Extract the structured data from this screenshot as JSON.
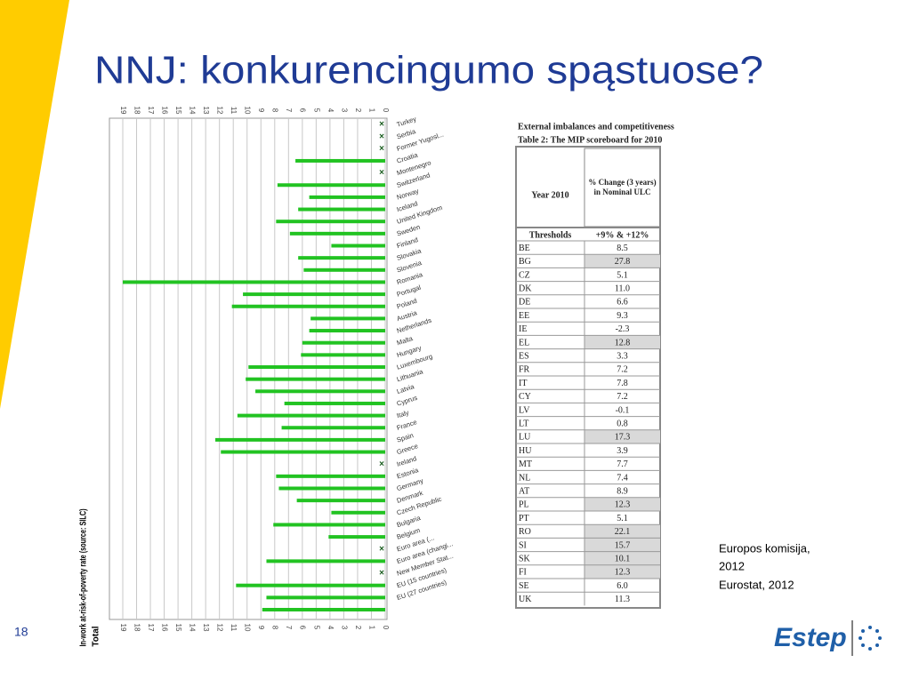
{
  "title": "NNJ: konkurencingumo spąstuose?",
  "chart_data": {
    "type": "bar",
    "orientation": "horizontal",
    "x_reversed": true,
    "axis_label": "In-work at-risk-of-poverty rate (source: SILC)",
    "axis_sublabel": "Total",
    "categories": [
      "Turkey",
      "Serbia",
      "Former Yugosl...",
      "Croatia",
      "Montenegro",
      "Switzerland",
      "Norway",
      "Iceland",
      "United Kingdom",
      "Sweden",
      "Finland",
      "Slovakia",
      "Slovenia",
      "Romania",
      "Portugal",
      "Poland",
      "Austria",
      "Netherlands",
      "Malta",
      "Hungary",
      "Luxembourg",
      "Lithuania",
      "Latvia",
      "Cyprus",
      "Italy",
      "France",
      "Spain",
      "Greece",
      "Ireland",
      "Estonia",
      "Germany",
      "Denmark",
      "Czech Republic",
      "Bulgaria",
      "Belgium",
      "Euro area (...",
      "Euro area (changi...",
      "New Member Stat...",
      "EU (15 countries)",
      "EU (27 countries)",
      null
    ],
    "values": [
      null,
      null,
      null,
      6.5,
      null,
      7.8,
      5.5,
      6.3,
      7.9,
      6.9,
      3.9,
      6.3,
      5.9,
      19.0,
      10.3,
      11.1,
      5.4,
      5.5,
      6.0,
      6.1,
      9.9,
      10.1,
      9.4,
      7.3,
      10.7,
      7.5,
      12.3,
      11.9,
      null,
      7.9,
      7.7,
      6.4,
      3.9,
      8.1,
      4.1,
      null,
      8.6,
      null,
      10.8,
      8.6,
      8.9
    ],
    "color": "#22c322",
    "grid": true,
    "xlim": [
      0,
      19
    ],
    "xticks": [
      0,
      1,
      2,
      3,
      4,
      5,
      6,
      7,
      8,
      9,
      10,
      11,
      12,
      13,
      14,
      15,
      16,
      17,
      18,
      19
    ]
  },
  "table": {
    "caption": "External imbalances and competitiveness",
    "title": "Table 2: The MIP scoreboard for 2010",
    "header": [
      "Year 2010",
      "% Change (3 years) in Nominal ULC"
    ],
    "thresholds": [
      "Thresholds",
      "+9%  & +12%"
    ],
    "rows": [
      [
        "BE",
        "8.5"
      ],
      [
        "BG",
        "27.8"
      ],
      [
        "CZ",
        "5.1"
      ],
      [
        "DK",
        "11.0"
      ],
      [
        "DE",
        "6.6"
      ],
      [
        "EE",
        "9.3"
      ],
      [
        "IE",
        "-2.3"
      ],
      [
        "EL",
        "12.8"
      ],
      [
        "ES",
        "3.3"
      ],
      [
        "FR",
        "7.2"
      ],
      [
        "IT",
        "7.8"
      ],
      [
        "CY",
        "7.2"
      ],
      [
        "LV",
        "-0.1"
      ],
      [
        "LT",
        "0.8"
      ],
      [
        "LU",
        "17.3"
      ],
      [
        "HU",
        "3.9"
      ],
      [
        "MT",
        "7.7"
      ],
      [
        "NL",
        "7.4"
      ],
      [
        "AT",
        "8.9"
      ],
      [
        "PL",
        "12.3"
      ],
      [
        "PT",
        "5.1"
      ],
      [
        "RO",
        "22.1"
      ],
      [
        "SI",
        "15.7"
      ],
      [
        "SK",
        "10.1"
      ],
      [
        "FI",
        "12.3"
      ],
      [
        "SE",
        "6.0"
      ],
      [
        "UK",
        "11.3"
      ]
    ],
    "highlighted": [
      false,
      true,
      false,
      false,
      false,
      false,
      false,
      true,
      false,
      false,
      false,
      false,
      false,
      false,
      true,
      false,
      false,
      false,
      false,
      true,
      false,
      true,
      true,
      true,
      true,
      false,
      false
    ],
    "highlight_color": "#d9d9d9"
  },
  "source": [
    "Europos komisija,",
    "2012",
    "Eurostat, 2012"
  ],
  "page_number": "18",
  "logo": "Estep"
}
